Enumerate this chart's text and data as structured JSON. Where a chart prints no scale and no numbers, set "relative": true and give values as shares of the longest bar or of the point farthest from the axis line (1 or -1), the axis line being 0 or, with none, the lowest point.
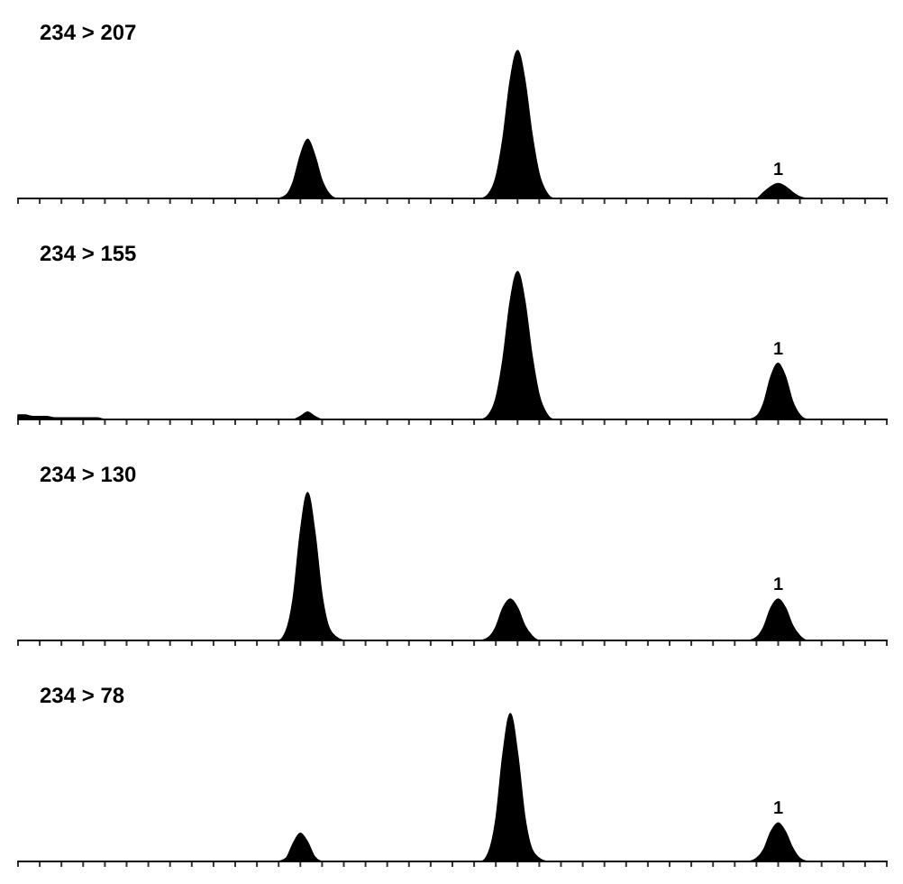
{
  "chart_data": [
    {
      "type": "area",
      "title": "234 > 207",
      "relative": true,
      "categories": [
        null,
        null,
        null,
        null,
        null,
        null,
        null,
        null,
        null,
        null,
        null,
        null,
        null,
        null,
        null,
        null,
        null,
        null,
        null,
        null,
        null,
        null,
        null,
        null,
        null,
        null,
        null,
        null,
        null,
        null,
        null,
        null,
        null,
        null,
        null,
        null,
        null,
        null,
        null,
        null,
        null,
        null,
        null,
        null,
        null,
        null,
        null,
        null,
        null,
        null,
        null,
        null,
        null,
        null,
        null,
        null,
        null,
        null,
        null,
        null,
        null,
        null,
        null,
        null,
        null,
        null,
        null,
        null,
        null,
        null,
        null,
        null,
        null,
        null,
        null,
        null,
        null,
        null,
        null,
        null,
        null,
        null,
        null,
        null,
        null,
        null,
        null,
        null,
        null,
        null,
        null,
        null,
        null,
        null,
        null,
        null,
        null,
        null,
        null,
        null,
        null,
        null,
        null,
        null,
        null,
        null,
        null,
        null,
        null,
        null,
        null,
        null,
        null,
        null,
        null,
        null,
        null,
        null,
        null,
        null,
        null
      ],
      "series": [
        {
          "color": "#000000",
          "values": [
            0,
            0,
            0,
            0,
            0,
            0,
            0,
            0,
            0,
            0,
            0,
            0,
            0,
            0,
            0,
            0,
            0,
            0,
            0,
            0,
            0,
            0,
            0,
            0,
            0,
            0,
            0,
            0,
            0,
            0,
            0,
            0,
            0,
            0,
            0,
            0,
            0,
            0.02,
            0.11,
            0.29,
            0.4,
            0.29,
            0.12,
            0.03,
            0,
            0,
            0,
            0,
            0,
            0,
            0,
            0,
            0,
            0,
            0,
            0,
            0,
            0,
            0,
            0,
            0,
            0,
            0,
            0,
            0,
            0.03,
            0.14,
            0.41,
            0.8,
            1,
            0.8,
            0.43,
            0.16,
            0.04,
            0,
            0,
            0,
            0,
            0,
            0,
            0,
            0,
            0,
            0,
            0,
            0,
            0,
            0,
            0,
            0,
            0,
            0,
            0,
            0,
            0,
            0,
            0,
            0,
            0,
            0,
            0,
            0,
            0,
            0.04,
            0.08,
            0.1,
            0.08,
            0.04,
            0.01,
            0,
            0,
            0,
            0,
            0,
            0,
            0,
            0,
            0,
            0,
            0,
            0
          ]
        }
      ],
      "annotations": [
        {
          "text": "1",
          "y": 0.1
        }
      ]
    },
    {
      "type": "area",
      "title": "234 > 155",
      "relative": true,
      "categories": [
        null,
        null,
        null,
        null,
        null,
        null,
        null,
        null,
        null,
        null,
        null,
        null,
        null,
        null,
        null,
        null,
        null,
        null,
        null,
        null,
        null,
        null,
        null,
        null,
        null,
        null,
        null,
        null,
        null,
        null,
        null,
        null,
        null,
        null,
        null,
        null,
        null,
        null,
        null,
        null,
        null,
        null,
        null,
        null,
        null,
        null,
        null,
        null,
        null,
        null,
        null,
        null,
        null,
        null,
        null,
        null,
        null,
        null,
        null,
        null,
        null,
        null,
        null,
        null,
        null,
        null,
        null,
        null,
        null,
        null,
        null,
        null,
        null,
        null,
        null,
        null,
        null,
        null,
        null,
        null,
        null,
        null,
        null,
        null,
        null,
        null,
        null,
        null,
        null,
        null,
        null,
        null,
        null,
        null,
        null,
        null,
        null,
        null,
        null,
        null,
        null,
        null,
        null,
        null,
        null,
        null,
        null,
        null,
        null,
        null,
        null,
        null,
        null,
        null,
        null,
        null,
        null,
        null,
        null,
        null,
        null
      ],
      "series": [
        {
          "color": "#000000",
          "values": [
            0.03,
            0.03,
            0.02,
            0.02,
            0.02,
            0.01,
            0.01,
            0.01,
            0.01,
            0.01,
            0.01,
            0.01,
            0,
            0,
            0,
            0,
            0,
            0,
            0,
            0,
            0,
            0,
            0,
            0,
            0,
            0,
            0,
            0,
            0,
            0,
            0,
            0,
            0,
            0,
            0,
            0,
            0,
            0,
            0,
            0.02,
            0.05,
            0.02,
            0,
            0,
            0,
            0,
            0,
            0,
            0,
            0,
            0,
            0,
            0,
            0,
            0,
            0,
            0,
            0,
            0,
            0,
            0,
            0,
            0,
            0,
            0,
            0.03,
            0.14,
            0.41,
            0.8,
            1,
            0.8,
            0.43,
            0.16,
            0.04,
            0,
            0,
            0,
            0,
            0,
            0,
            0,
            0,
            0,
            0,
            0,
            0,
            0,
            0,
            0,
            0,
            0,
            0,
            0,
            0,
            0,
            0,
            0,
            0,
            0,
            0,
            0,
            0,
            0.02,
            0.11,
            0.29,
            0.38,
            0.29,
            0.12,
            0.03,
            0,
            0,
            0,
            0,
            0,
            0,
            0,
            0,
            0,
            0,
            0,
            0
          ]
        }
      ],
      "annotations": [
        {
          "text": "1",
          "y": 0.38
        }
      ]
    },
    {
      "type": "area",
      "title": "234 > 130",
      "relative": true,
      "categories": [
        null,
        null,
        null,
        null,
        null,
        null,
        null,
        null,
        null,
        null,
        null,
        null,
        null,
        null,
        null,
        null,
        null,
        null,
        null,
        null,
        null,
        null,
        null,
        null,
        null,
        null,
        null,
        null,
        null,
        null,
        null,
        null,
        null,
        null,
        null,
        null,
        null,
        null,
        null,
        null,
        null,
        null,
        null,
        null,
        null,
        null,
        null,
        null,
        null,
        null,
        null,
        null,
        null,
        null,
        null,
        null,
        null,
        null,
        null,
        null,
        null,
        null,
        null,
        null,
        null,
        null,
        null,
        null,
        null,
        null,
        null,
        null,
        null,
        null,
        null,
        null,
        null,
        null,
        null,
        null,
        null,
        null,
        null,
        null,
        null,
        null,
        null,
        null,
        null,
        null,
        null,
        null,
        null,
        null,
        null,
        null,
        null,
        null,
        null,
        null,
        null,
        null,
        null,
        null,
        null,
        null,
        null,
        null,
        null,
        null,
        null,
        null,
        null,
        null,
        null,
        null,
        null,
        null,
        null,
        null,
        null
      ],
      "series": [
        {
          "color": "#000000",
          "values": [
            0,
            0,
            0,
            0,
            0,
            0,
            0,
            0,
            0,
            0,
            0,
            0,
            0,
            0,
            0,
            0,
            0,
            0,
            0,
            0,
            0,
            0,
            0,
            0,
            0,
            0,
            0,
            0,
            0,
            0,
            0,
            0,
            0,
            0,
            0,
            0,
            0,
            0.06,
            0.28,
            0.73,
            1,
            0.73,
            0.3,
            0.08,
            0.02,
            0,
            0,
            0,
            0,
            0,
            0,
            0,
            0,
            0,
            0,
            0,
            0,
            0,
            0,
            0,
            0,
            0,
            0,
            0,
            0,
            0.02,
            0.09,
            0.22,
            0.28,
            0.22,
            0.1,
            0.03,
            0,
            0,
            0,
            0,
            0,
            0,
            0,
            0,
            0,
            0,
            0,
            0,
            0,
            0,
            0,
            0,
            0,
            0,
            0,
            0,
            0,
            0,
            0,
            0,
            0,
            0,
            0,
            0,
            0,
            0,
            0.02,
            0.09,
            0.22,
            0.28,
            0.22,
            0.1,
            0.03,
            0,
            0,
            0,
            0,
            0,
            0,
            0,
            0,
            0,
            0,
            0,
            0
          ]
        }
      ],
      "annotations": [
        {
          "text": "1",
          "y": 0.28
        }
      ]
    },
    {
      "type": "area",
      "title": "234 > 78",
      "relative": true,
      "categories": [
        null,
        null,
        null,
        null,
        null,
        null,
        null,
        null,
        null,
        null,
        null,
        null,
        null,
        null,
        null,
        null,
        null,
        null,
        null,
        null,
        null,
        null,
        null,
        null,
        null,
        null,
        null,
        null,
        null,
        null,
        null,
        null,
        null,
        null,
        null,
        null,
        null,
        null,
        null,
        null,
        null,
        null,
        null,
        null,
        null,
        null,
        null,
        null,
        null,
        null,
        null,
        null,
        null,
        null,
        null,
        null,
        null,
        null,
        null,
        null,
        null,
        null,
        null,
        null,
        null,
        null,
        null,
        null,
        null,
        null,
        null,
        null,
        null,
        null,
        null,
        null,
        null,
        null,
        null,
        null,
        null,
        null,
        null,
        null,
        null,
        null,
        null,
        null,
        null,
        null,
        null,
        null,
        null,
        null,
        null,
        null,
        null,
        null,
        null,
        null,
        null,
        null,
        null,
        null,
        null,
        null,
        null,
        null,
        null,
        null,
        null,
        null,
        null,
        null,
        null,
        null,
        null,
        null,
        null,
        null,
        null
      ],
      "series": [
        {
          "color": "#000000",
          "values": [
            0,
            0,
            0,
            0,
            0,
            0,
            0,
            0,
            0,
            0,
            0,
            0,
            0,
            0,
            0,
            0,
            0,
            0,
            0,
            0,
            0,
            0,
            0,
            0,
            0,
            0,
            0,
            0,
            0,
            0,
            0,
            0,
            0,
            0,
            0,
            0,
            0,
            0.02,
            0.12,
            0.19,
            0.13,
            0.03,
            0,
            0,
            0,
            0,
            0,
            0,
            0,
            0,
            0,
            0,
            0,
            0,
            0,
            0,
            0,
            0,
            0,
            0,
            0,
            0,
            0,
            0,
            0,
            0.06,
            0.28,
            0.73,
            1,
            0.73,
            0.3,
            0.08,
            0.02,
            0,
            0,
            0,
            0,
            0,
            0,
            0,
            0,
            0,
            0,
            0,
            0,
            0,
            0,
            0,
            0,
            0,
            0,
            0,
            0,
            0,
            0,
            0,
            0,
            0,
            0,
            0,
            0,
            0,
            0.02,
            0.08,
            0.2,
            0.26,
            0.2,
            0.09,
            0.02,
            0,
            0,
            0,
            0,
            0,
            0,
            0,
            0,
            0,
            0,
            0,
            0
          ]
        }
      ],
      "annotations": [
        {
          "text": "1",
          "y": 0.26
        }
      ]
    }
  ]
}
